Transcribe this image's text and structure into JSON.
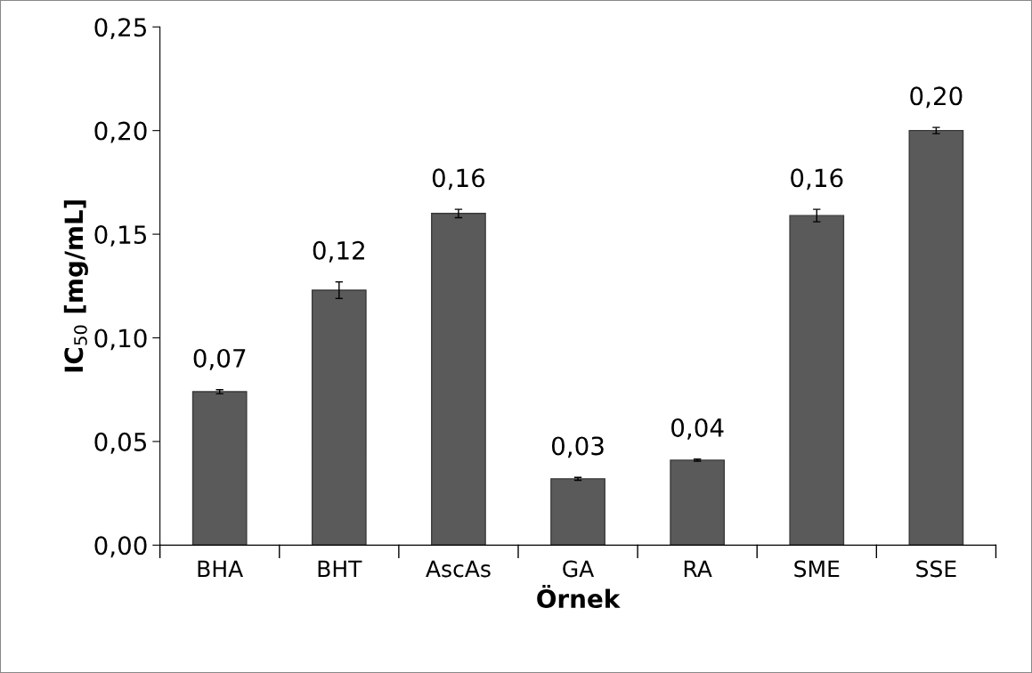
{
  "chart_data": {
    "type": "bar",
    "xlabel": "Örnek",
    "ylabel": "IC$_{50}$ [mg/mL]",
    "categories": [
      "BHA",
      "BHT",
      "AscAs",
      "GA",
      "RA",
      "SME",
      "SSE"
    ],
    "values": [
      0.074,
      0.123,
      0.16,
      0.032,
      0.041,
      0.159,
      0.2
    ],
    "errors": [
      0.001,
      0.004,
      0.002,
      0.0007,
      0.0005,
      0.003,
      0.0015
    ],
    "value_labels": [
      "0,07",
      "0,12",
      "0,16",
      "0,03",
      "0,04",
      "0,16",
      "0,20"
    ],
    "color": "#5a5a5a",
    "ylim": [
      0,
      0.25
    ],
    "yticks": [
      {
        "value": 0,
        "label": "0,00"
      },
      {
        "value": 0.05,
        "label": "0,05"
      },
      {
        "value": 0.1,
        "label": "0,10"
      },
      {
        "value": 0.15,
        "label": "0,15"
      },
      {
        "value": 0.2,
        "label": "0,20"
      },
      {
        "value": 0.25,
        "label": "0,25"
      }
    ],
    "grid": false
  }
}
